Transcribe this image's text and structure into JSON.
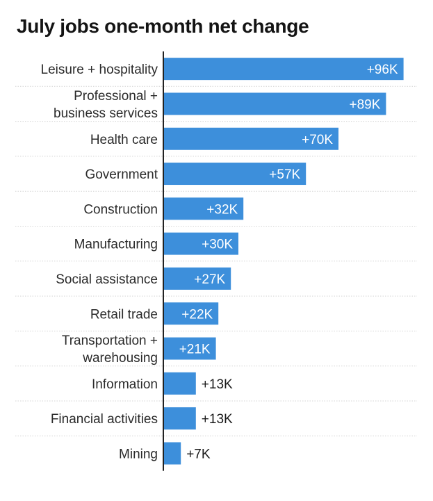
{
  "chart_data": {
    "type": "bar",
    "orientation": "horizontal",
    "title": "July jobs one-month net change",
    "categories": [
      "Leisure + hospitality",
      "Professional + business services",
      "Health care",
      "Government",
      "Construction",
      "Manufacturing",
      "Social assistance",
      "Retail trade",
      "Transportation + warehousing",
      "Information",
      "Financial activities",
      "Mining"
    ],
    "category_lines": [
      [
        "Leisure + hospitality"
      ],
      [
        "Professional +",
        "business services"
      ],
      [
        "Health care"
      ],
      [
        "Government"
      ],
      [
        "Construction"
      ],
      [
        "Manufacturing"
      ],
      [
        "Social assistance"
      ],
      [
        "Retail trade"
      ],
      [
        "Transportation +",
        "warehousing"
      ],
      [
        "Information"
      ],
      [
        "Financial activities"
      ],
      [
        "Mining"
      ]
    ],
    "values": [
      96,
      89,
      70,
      57,
      32,
      30,
      27,
      22,
      21,
      13,
      13,
      7
    ],
    "data_labels": [
      "+96K",
      "+89K",
      "+70K",
      "+57K",
      "+32K",
      "+30K",
      "+27K",
      "+22K",
      "+21K",
      "+13K",
      "+13K",
      "+7K"
    ],
    "xlim": [
      0,
      100
    ],
    "grid": false,
    "bar_color": "#3d8fdb",
    "separator_color": "#d4d4d4",
    "axis_color": "#222222"
  }
}
